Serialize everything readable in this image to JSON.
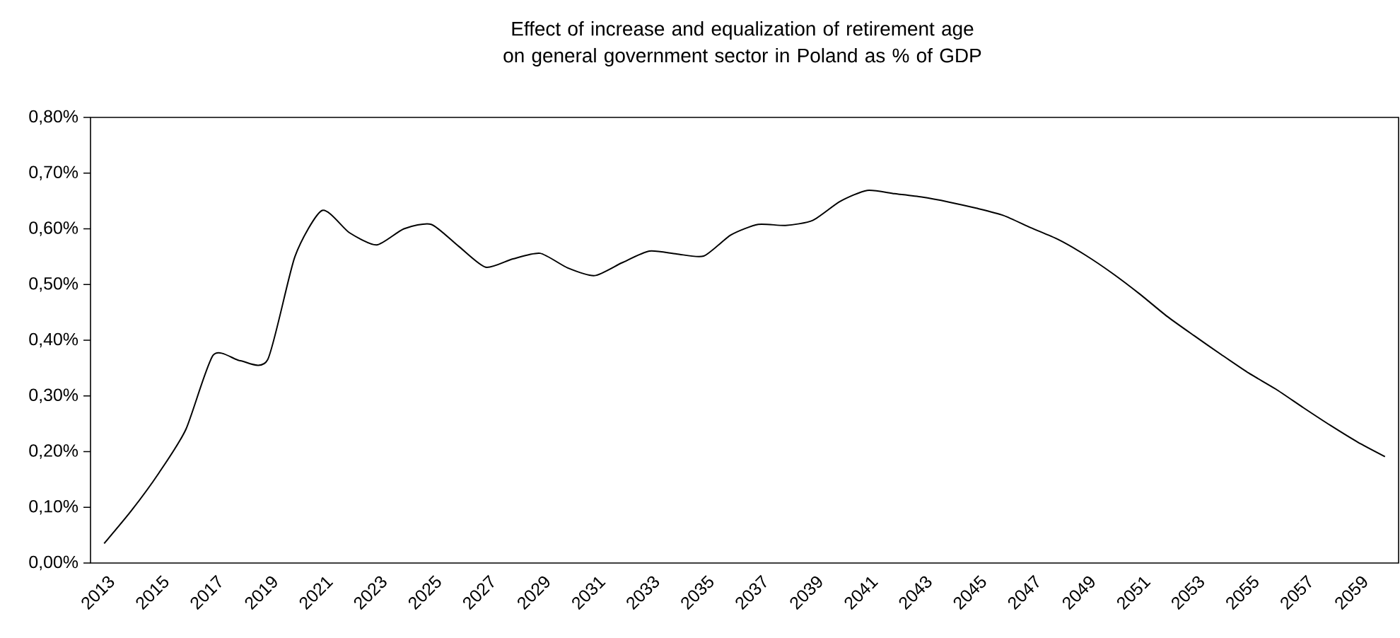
{
  "chart_data": {
    "type": "line",
    "title": "Effect of increase and equalization of retirement age on general government sector in Poland as % of GDP",
    "categories": [
      "2013",
      null,
      "2015",
      null,
      "2017",
      null,
      "2019",
      null,
      "2021",
      null,
      "2023",
      null,
      "2025",
      null,
      "2027",
      null,
      "2029",
      null,
      "2031",
      null,
      "2033",
      null,
      "2035",
      null,
      "2037",
      null,
      "2039",
      null,
      "2041",
      null,
      "2043",
      null,
      "2045",
      null,
      "2047",
      null,
      "2049",
      null,
      "2051",
      null,
      "2053",
      null,
      "2055",
      null,
      "2057",
      null,
      "2059",
      null
    ],
    "values": [
      0.035,
      0.094,
      0.161,
      0.24,
      0.373,
      0.363,
      0.365,
      0.55,
      0.633,
      0.593,
      0.571,
      0.6,
      0.608,
      0.569,
      0.531,
      0.546,
      0.556,
      0.53,
      0.516,
      0.539,
      0.56,
      0.555,
      0.551,
      0.589,
      0.608,
      0.606,
      0.615,
      0.649,
      0.669,
      0.663,
      0.657,
      0.648,
      0.637,
      0.624,
      0.602,
      0.581,
      0.553,
      0.52,
      0.483,
      0.443,
      0.408,
      0.374,
      0.341,
      0.312,
      0.279,
      0.247,
      0.217,
      0.191
    ],
    "color": "#000000",
    "ylim": [
      0,
      0.8
    ],
    "yticks": [
      {
        "value": 0,
        "label": "0,00%"
      },
      {
        "value": 0.1,
        "label": "0,10%"
      },
      {
        "value": 0.2,
        "label": "0,20%"
      },
      {
        "value": 0.3,
        "label": "0,30%"
      },
      {
        "value": 0.4,
        "label": "0,40%"
      },
      {
        "value": 0.5,
        "label": "0,50%"
      },
      {
        "value": 0.6,
        "label": "0,60%"
      },
      {
        "value": 0.7,
        "label": "0,70%"
      },
      {
        "value": 0.8,
        "label": "0,80%"
      }
    ]
  }
}
